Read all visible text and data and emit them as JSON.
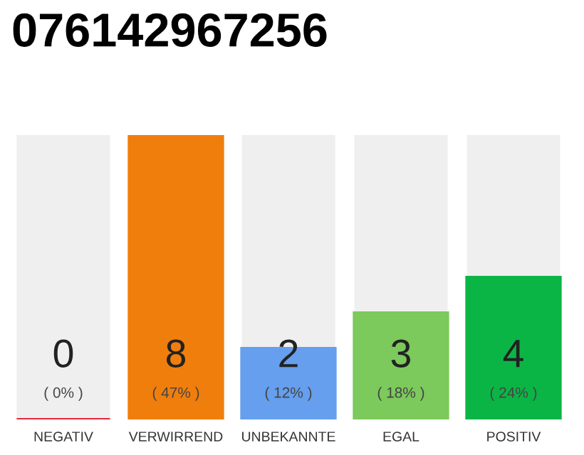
{
  "chart_data": {
    "type": "bar",
    "title": "076142967256",
    "categories": [
      "NEGATIV",
      "VERWIRREND",
      "UNBEKANNTE",
      "EGAL",
      "POSITIV"
    ],
    "values": [
      0,
      8,
      2,
      3,
      4
    ],
    "colors": [
      "#e8273c",
      "#f07e0c",
      "#659fee",
      "#7cc95c",
      "#0bb545"
    ],
    "data_labels": true,
    "annotations": [
      "( 0% )",
      "( 47% )",
      "( 12% )",
      "( 18% )",
      "( 24% )"
    ],
    "tick_labels": "x",
    "grid": false,
    "legend": false
  }
}
